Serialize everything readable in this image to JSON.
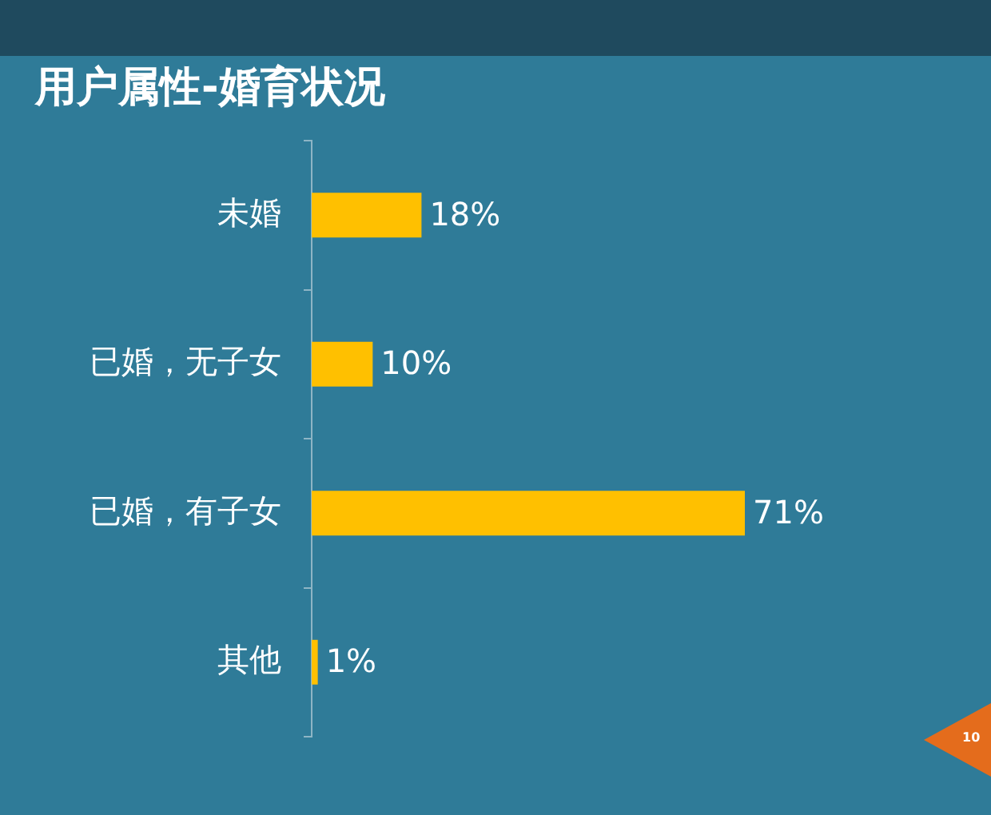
{
  "chart_data": {
    "type": "bar",
    "title": "用户属性-婚育状况",
    "orientation": "horizontal",
    "categories": [
      "未婚",
      "已婚，无子女",
      "已婚，有子女",
      "其他"
    ],
    "values": [
      18,
      10,
      71,
      1
    ],
    "color": "#ffc000",
    "value_labels": [
      "18%",
      "10%",
      "71%",
      "1%"
    ],
    "tick_labels": "y",
    "annotations": [
      "10"
    ]
  }
}
